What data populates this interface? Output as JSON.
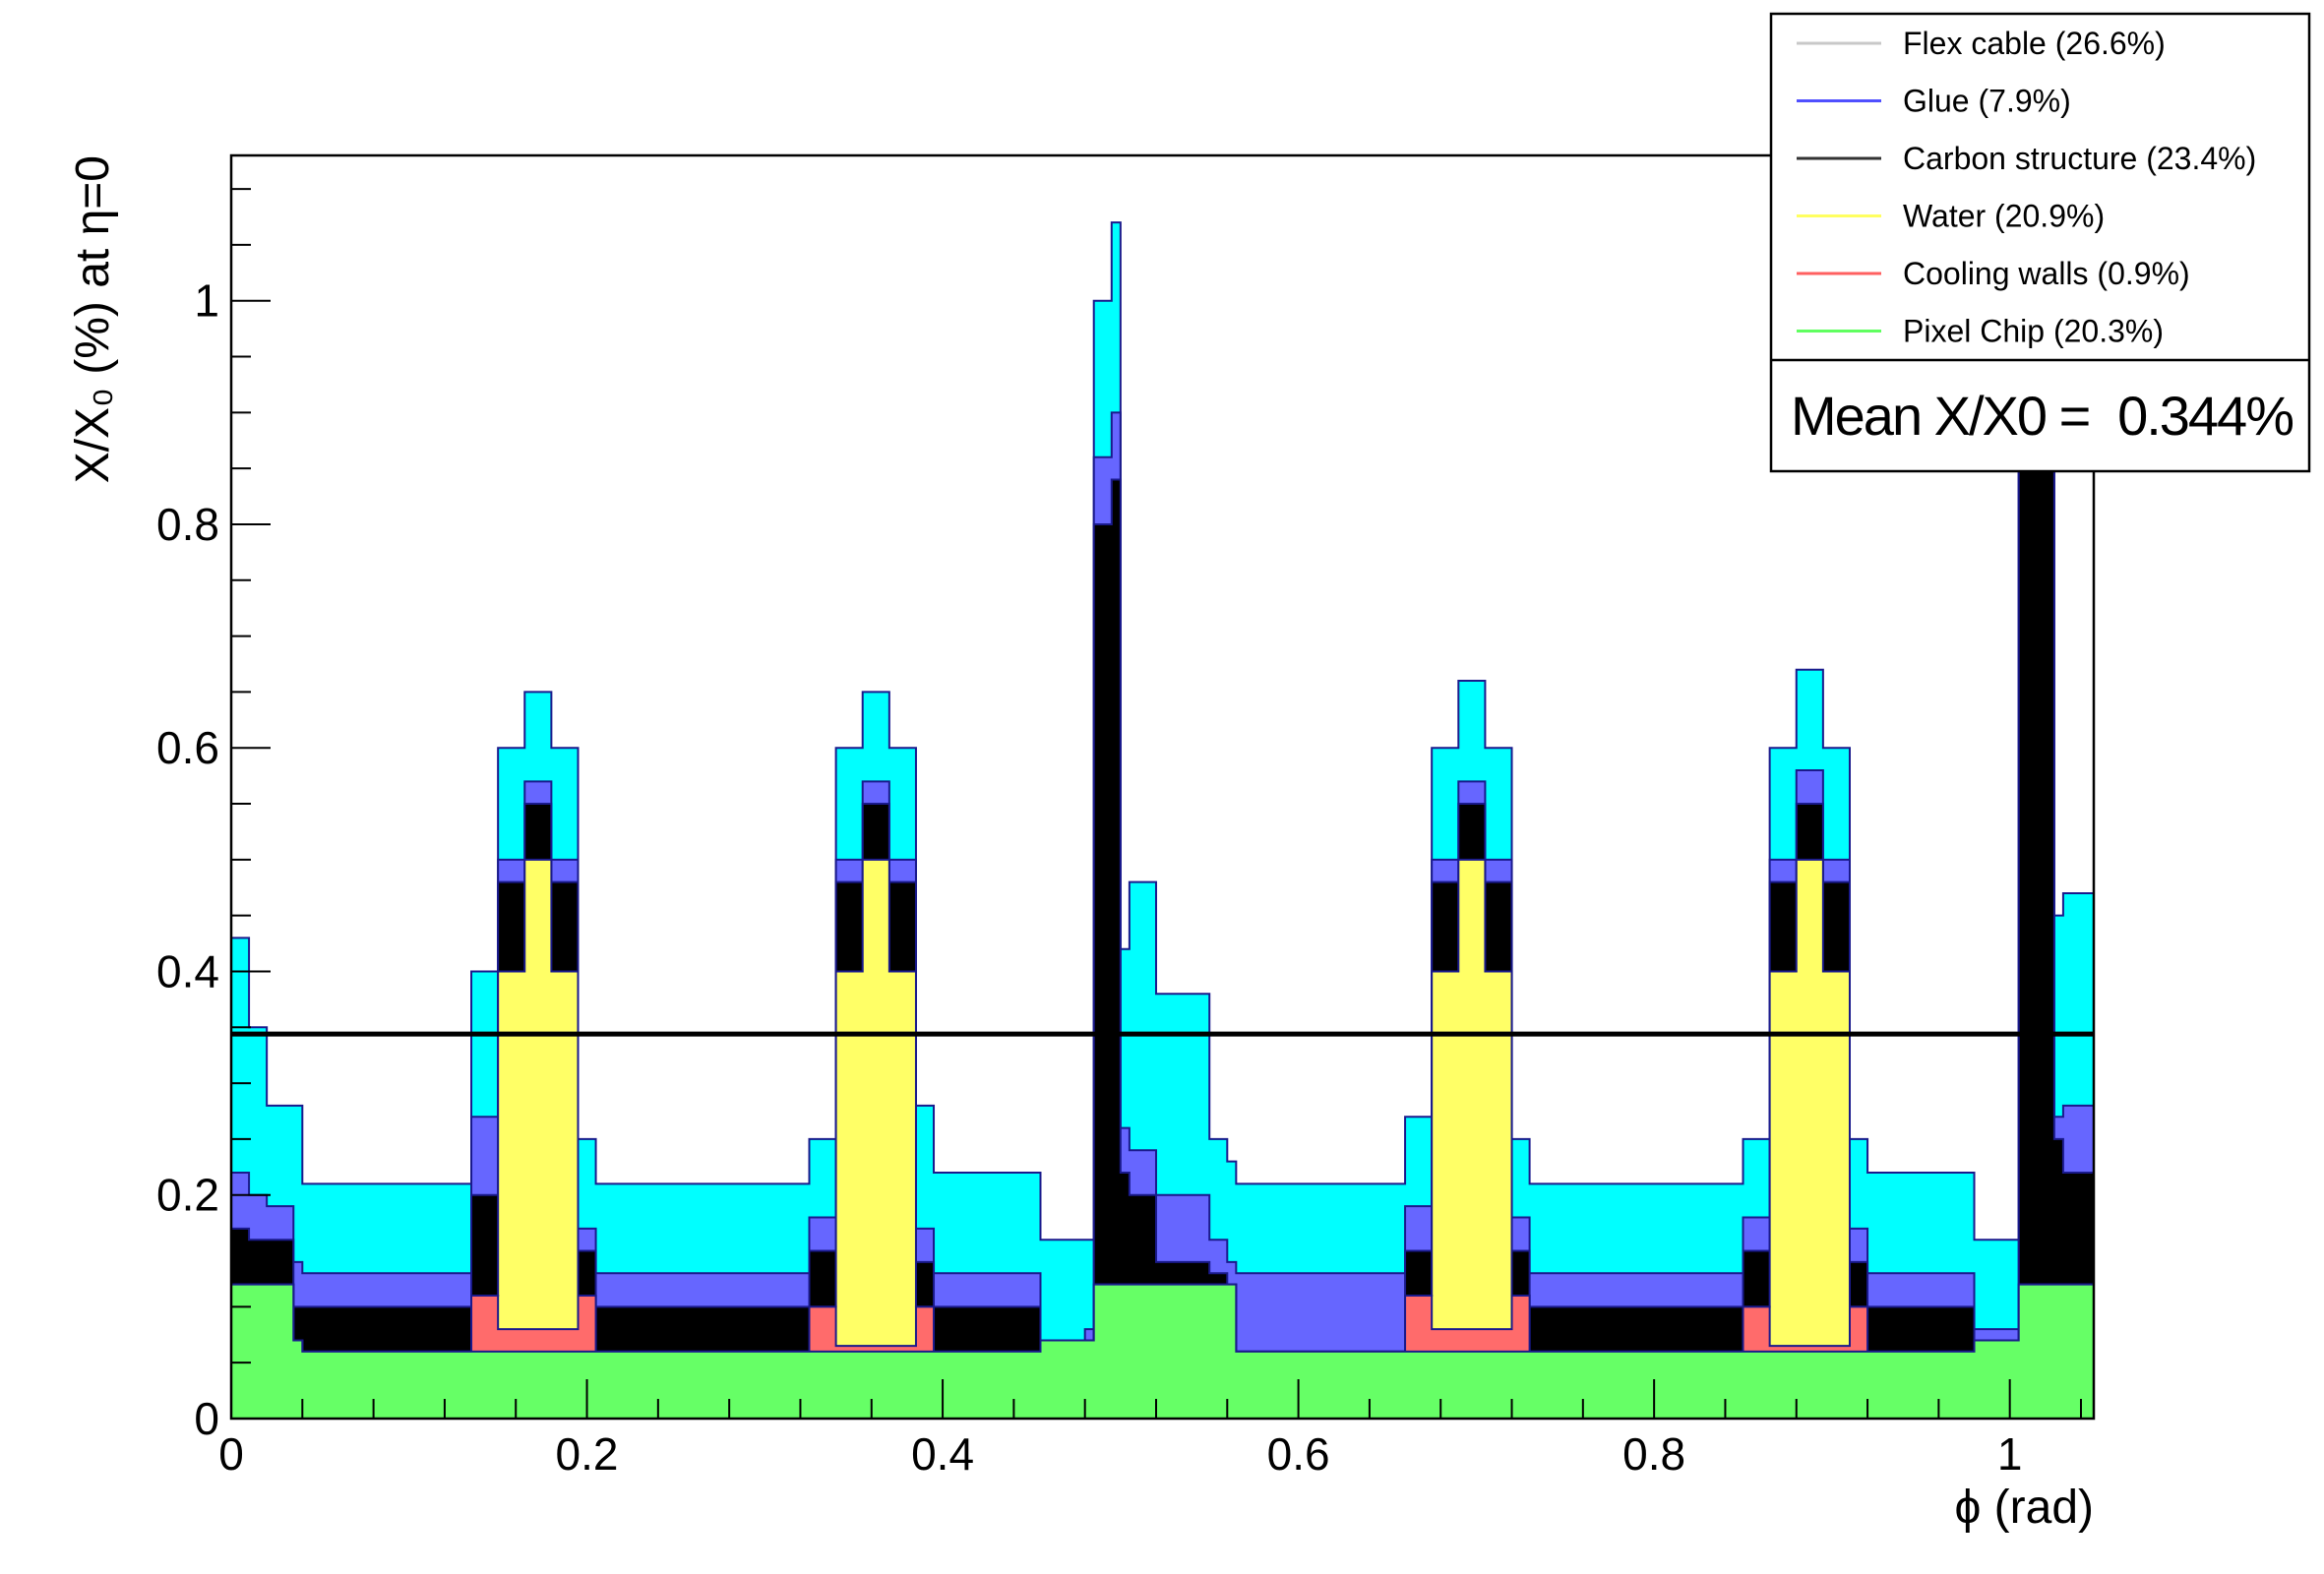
{
  "chart_data": {
    "type": "area",
    "stacked": true,
    "xlabel": "ϕ (rad)",
    "ylabel": "X/X₀ (%) at η=0",
    "xlim": [
      0,
      1.0472
    ],
    "ylim": [
      0,
      1.13
    ],
    "x_ticks": [
      0,
      0.2,
      0.4,
      0.6,
      0.8,
      1
    ],
    "x_tick_labels": [
      "0",
      "0.2",
      "0.4",
      "0.6",
      "0.8",
      "1"
    ],
    "y_ticks": [
      0,
      0.2,
      0.4,
      0.6,
      0.8,
      1
    ],
    "y_tick_labels": [
      "0",
      "0.2",
      "0.4",
      "0.6",
      "0.8",
      "1"
    ],
    "mean_line": 0.344,
    "mean_label": "Mean X/X0 =",
    "mean_value": "0.344%",
    "legend_position": "top-right",
    "legend": [
      {
        "label": "Flex cable (26.6%)",
        "color": "#c8c8c8"
      },
      {
        "label": "Glue (7.9%)",
        "color": "#5050ff"
      },
      {
        "label": "Carbon structure (23.4%)",
        "color": "#333333"
      },
      {
        "label": "Water (20.9%)",
        "color": "#ffff60"
      },
      {
        "label": "Cooling walls (0.9%)",
        "color": "#ff6060"
      },
      {
        "label": "Pixel Chip (20.3%)",
        "color": "#60ff60"
      }
    ],
    "series_order_bottom_to_top": [
      "Pixel Chip",
      "Cooling walls",
      "Water",
      "Carbon structure",
      "Glue",
      "Flex cable"
    ],
    "series_fill_colors": {
      "Pixel Chip": "#66ff66",
      "Cooling walls": "#ff6b6b",
      "Water": "#ffff66",
      "Carbon structure": "#000000",
      "Glue": "#6666ff",
      "Flex cable": "#00ffff"
    },
    "cumulative_profile": {
      "description_units": "phi (rad) vs cumulative X/X0 (%) at top of each layer",
      "x": [
        0,
        0.01,
        0.02,
        0.035,
        0.04,
        0.13,
        0.135,
        0.15,
        0.165,
        0.18,
        0.195,
        0.205,
        0.32,
        0.325,
        0.34,
        0.355,
        0.37,
        0.385,
        0.395,
        0.45,
        0.455,
        0.48,
        0.485,
        0.495,
        0.5,
        0.505,
        0.52,
        0.55,
        0.56,
        0.565,
        0.655,
        0.66,
        0.675,
        0.69,
        0.705,
        0.72,
        0.73,
        0.845,
        0.85,
        0.865,
        0.88,
        0.895,
        0.91,
        0.92,
        0.975,
        0.98,
        1.0,
        1.005,
        1.015,
        1.025,
        1.03,
        1.0472
      ],
      "pixel_chip": [
        0.12,
        0.12,
        0.12,
        0.07,
        0.06,
        0.06,
        0.06,
        0.06,
        0.06,
        0.06,
        0.06,
        0.06,
        0.06,
        0.06,
        0.06,
        0.06,
        0.06,
        0.06,
        0.06,
        0.06,
        0.07,
        0.07,
        0.12,
        0.12,
        0.12,
        0.12,
        0.12,
        0.12,
        0.12,
        0.06,
        0.06,
        0.06,
        0.06,
        0.06,
        0.06,
        0.06,
        0.06,
        0.06,
        0.06,
        0.06,
        0.06,
        0.06,
        0.06,
        0.06,
        0.06,
        0.07,
        0.07,
        0.12,
        0.12,
        0.12,
        0.12,
        0.12
      ],
      "cooling_walls": [
        0.12,
        0.12,
        0.12,
        0.07,
        0.06,
        0.06,
        0.11,
        0.08,
        0.08,
        0.08,
        0.11,
        0.06,
        0.06,
        0.1,
        0.065,
        0.065,
        0.065,
        0.1,
        0.06,
        0.06,
        0.07,
        0.07,
        0.12,
        0.12,
        0.12,
        0.12,
        0.12,
        0.12,
        0.12,
        0.06,
        0.06,
        0.11,
        0.08,
        0.08,
        0.08,
        0.11,
        0.06,
        0.06,
        0.1,
        0.065,
        0.065,
        0.065,
        0.1,
        0.06,
        0.06,
        0.07,
        0.07,
        0.12,
        0.12,
        0.12,
        0.12,
        0.12
      ],
      "water": [
        0.12,
        0.12,
        0.12,
        0.07,
        0.06,
        0.06,
        0.11,
        0.4,
        0.5,
        0.4,
        0.11,
        0.06,
        0.06,
        0.1,
        0.4,
        0.5,
        0.4,
        0.1,
        0.06,
        0.06,
        0.07,
        0.07,
        0.12,
        0.12,
        0.12,
        0.12,
        0.12,
        0.12,
        0.12,
        0.06,
        0.06,
        0.11,
        0.4,
        0.5,
        0.4,
        0.11,
        0.06,
        0.06,
        0.1,
        0.4,
        0.5,
        0.4,
        0.1,
        0.06,
        0.06,
        0.07,
        0.07,
        0.12,
        0.12,
        0.12,
        0.12,
        0.12
      ],
      "carbon_structure": [
        0.17,
        0.16,
        0.16,
        0.1,
        0.1,
        0.1,
        0.2,
        0.48,
        0.55,
        0.48,
        0.15,
        0.1,
        0.1,
        0.15,
        0.48,
        0.55,
        0.48,
        0.14,
        0.1,
        0.1,
        0.07,
        0.07,
        0.8,
        0.84,
        0.22,
        0.2,
        0.14,
        0.13,
        0.12,
        0.06,
        0.06,
        0.15,
        0.48,
        0.55,
        0.48,
        0.15,
        0.1,
        0.1,
        0.15,
        0.48,
        0.55,
        0.48,
        0.14,
        0.1,
        0.1,
        0.07,
        0.07,
        0.85,
        0.9,
        0.25,
        0.22,
        0.2
      ],
      "glue": [
        0.22,
        0.2,
        0.19,
        0.14,
        0.13,
        0.13,
        0.27,
        0.5,
        0.57,
        0.5,
        0.17,
        0.13,
        0.13,
        0.18,
        0.5,
        0.57,
        0.5,
        0.17,
        0.13,
        0.13,
        0.07,
        0.08,
        0.86,
        0.9,
        0.26,
        0.24,
        0.2,
        0.16,
        0.14,
        0.13,
        0.13,
        0.19,
        0.5,
        0.57,
        0.5,
        0.18,
        0.13,
        0.13,
        0.18,
        0.5,
        0.58,
        0.5,
        0.17,
        0.13,
        0.13,
        0.08,
        0.08,
        0.9,
        0.95,
        0.27,
        0.28,
        0.3
      ],
      "flex_cable": [
        0.43,
        0.35,
        0.28,
        0.28,
        0.21,
        0.21,
        0.4,
        0.6,
        0.65,
        0.6,
        0.25,
        0.21,
        0.21,
        0.25,
        0.6,
        0.65,
        0.6,
        0.28,
        0.22,
        0.22,
        0.16,
        0.16,
        1.0,
        1.07,
        0.42,
        0.48,
        0.38,
        0.25,
        0.23,
        0.21,
        0.21,
        0.27,
        0.6,
        0.66,
        0.6,
        0.25,
        0.21,
        0.21,
        0.25,
        0.6,
        0.67,
        0.6,
        0.25,
        0.22,
        0.22,
        0.16,
        0.16,
        1.0,
        1.05,
        0.45,
        0.47,
        0.45
      ]
    }
  }
}
